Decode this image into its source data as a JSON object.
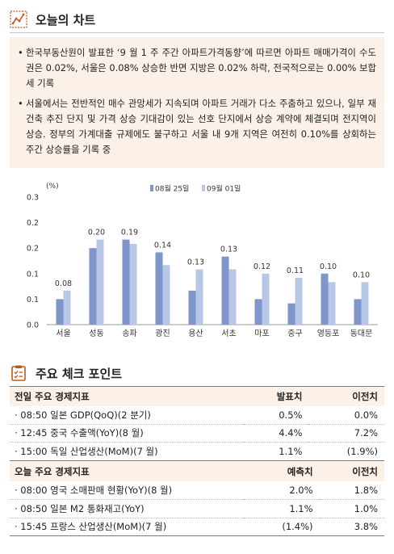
{
  "section1": {
    "title": "오늘의 차트",
    "bullets": [
      "한국부동산원이 발표한 ‘9 월 1 주 주간 아파트가격동향’에 따르면 아파트 매매가격이 수도권은 0.02%, 서울은 0.08% 상승한 반면 지방은 0.02% 하락, 전국적으로는 0.00% 보합세 기록",
      "서울에서는 전반적인 매수 관망세가 지속되며 아파트 거래가 다소 주춤하고 있으나, 일부 재건축 추진 단지 및 가격 상승 기대감이 있는 선호 단지에서 상승 계약에 체결되며 전지역이 상승. 정부의 가계대출 규제에도 불구하고 서울 내 9개 지역은 여전히 0.10%를 상회하는 주간 상승률을 기록 중"
    ]
  },
  "chart_data": {
    "type": "bar",
    "unit_label": "(%)",
    "categories": [
      "서울",
      "성동",
      "송파",
      "광진",
      "용산",
      "서초",
      "마포",
      "중구",
      "영등포",
      "동대문"
    ],
    "series": [
      {
        "name": "08월 25일",
        "values": [
          0.06,
          0.18,
          0.2,
          0.17,
          0.08,
          0.16,
          0.06,
          0.05,
          0.12,
          0.06
        ],
        "color": "#7e96c9"
      },
      {
        "name": "09월 01일",
        "values": [
          0.08,
          0.2,
          0.19,
          0.14,
          0.13,
          0.13,
          0.12,
          0.11,
          0.1,
          0.1
        ],
        "color": "#b9c7e6"
      }
    ],
    "data_labels": [
      "0.08",
      "0.20",
      "0.19",
      "0.14",
      "0.13",
      "0.13",
      "0.12",
      "0.11",
      "0.10",
      "0.10"
    ],
    "ylim": [
      0,
      0.3
    ],
    "yticks": [
      "0.0",
      "0.1",
      "0.1",
      "0.2",
      "0.2",
      "0.3"
    ],
    "legend_position": "top"
  },
  "section2": {
    "title": "주요 체크 포인트",
    "table1": {
      "headers": [
        "전일 주요 경제지표",
        "발표치",
        "이전치"
      ],
      "rows": [
        [
          "· 08:50 일본 GDP(QoQ)(2 분기)",
          "0.5%",
          "0.0%"
        ],
        [
          "· 12:45 중국 수출액(YoY)(8 월)",
          "4.4%",
          "7.2%"
        ],
        [
          "· 15:00 독일 산업생산(MoM)(7 월)",
          "1.1%",
          "(1.9%)"
        ]
      ]
    },
    "table2": {
      "headers": [
        "오늘 주요 경제지표",
        "예측치",
        "이전치"
      ],
      "rows": [
        [
          "· 08:00 영국 소매판매 현황(YoY)(8 월)",
          "2.0%",
          "1.8%"
        ],
        [
          "· 08:50 일본 M2 통화재고(YoY)",
          "1.1%",
          "1.0%"
        ],
        [
          "· 15:45 프랑스 산업생산(MoM)(7 월)",
          "(1.4%)",
          "3.8%"
        ]
      ]
    }
  },
  "colors": {
    "accent": "#c0581d",
    "box_bg": "#fbf1e8",
    "series1": "#7e96c9",
    "series2": "#b9c7e6"
  },
  "icons": {
    "section1": "trend-chart-icon",
    "section2": "checklist-icon"
  }
}
